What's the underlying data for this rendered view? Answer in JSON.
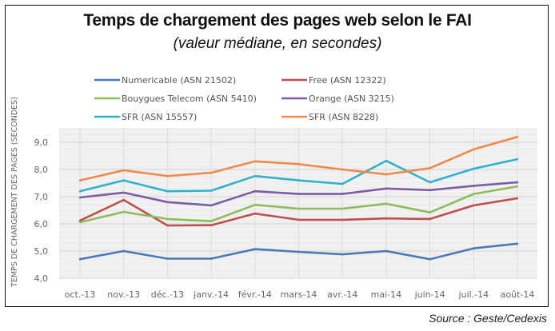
{
  "chart_data": {
    "type": "line",
    "title": "Temps de chargement des pages web selon le FAI",
    "subtitle": "(valeur médiane, en secondes)",
    "xlabel": "",
    "ylabel": "TEMPS DE CHARGEMENT DES PAGES (SECONDES)",
    "ylim": [
      4.0,
      9.0
    ],
    "yticks": [
      "4,0",
      "5,0",
      "6,0",
      "7,0",
      "8,0",
      "9,0"
    ],
    "ytick_values": [
      4,
      5,
      6,
      7,
      8,
      9
    ],
    "grid": true,
    "legend_position": "top",
    "categories": [
      "oct.-13",
      "nov.-13",
      "déc.-13",
      "janv.-14",
      "févr.-14",
      "mars-14",
      "avr.-14",
      "mai-14",
      "juin-14",
      "juil.-14",
      "août-14"
    ],
    "series": [
      {
        "name": "Numericable (ASN 21502)",
        "color": "#4a7ab5",
        "values": [
          4.7,
          5.0,
          4.72,
          4.72,
          5.07,
          4.97,
          4.88,
          5.0,
          4.7,
          5.1,
          5.27
        ]
      },
      {
        "name": "Free (ASN 12322)",
        "color": "#c0504d",
        "values": [
          6.12,
          6.88,
          5.94,
          5.95,
          6.38,
          6.15,
          6.15,
          6.2,
          6.18,
          6.68,
          6.94
        ]
      },
      {
        "name": "Bouygues Telecom (ASN 5410)",
        "color": "#8fbc5a",
        "values": [
          6.06,
          6.44,
          6.18,
          6.1,
          6.7,
          6.56,
          6.56,
          6.74,
          6.42,
          7.1,
          7.38
        ]
      },
      {
        "name": "Orange (ASN 3215)",
        "color": "#7b5ea7",
        "values": [
          6.97,
          7.15,
          6.8,
          6.68,
          7.2,
          7.1,
          7.1,
          7.3,
          7.24,
          7.4,
          7.53
        ]
      },
      {
        "name": "SFR (ASN 15557)",
        "color": "#31b2c8",
        "values": [
          7.2,
          7.6,
          7.2,
          7.22,
          7.76,
          7.6,
          7.47,
          8.32,
          7.53,
          8.03,
          8.38
        ]
      },
      {
        "name": "SFR (ASN 8228)",
        "color": "#f0894a",
        "values": [
          7.6,
          7.97,
          7.76,
          7.88,
          8.3,
          8.2,
          8.0,
          7.82,
          8.05,
          8.74,
          9.2
        ]
      }
    ],
    "source": "Source  : Geste/Cedexis"
  }
}
